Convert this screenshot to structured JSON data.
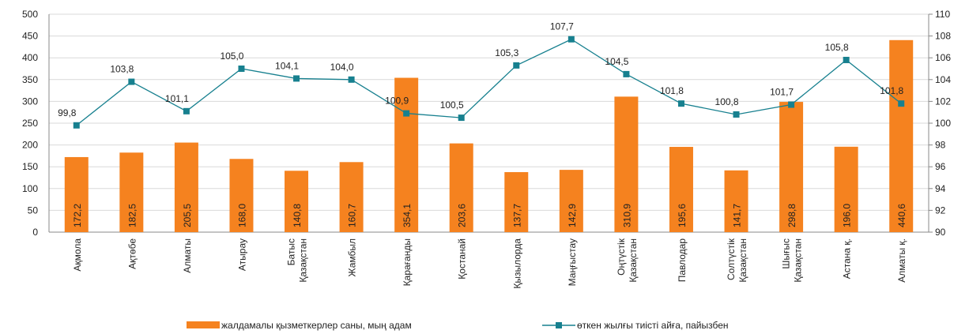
{
  "chart_data": {
    "type": "bar_line",
    "categories": [
      "Ақмола",
      "Ақтөбе",
      "Алматы",
      "Атырау",
      "Батыс\nҚазақстан",
      "Жамбыл",
      "Қарағанды",
      "Қостанай",
      "Қызылорда",
      "Маңғыстау",
      "Оңтүстік\nҚазақстан",
      "Павлодар",
      "Солтүстік\nҚазақстан",
      "Шығыс\nҚазақстан",
      "Астана қ.",
      "Алматы қ."
    ],
    "series": [
      {
        "name": "жалдамалы қызметкерлер саны, мың адам",
        "color": "#f5821f",
        "type": "bar",
        "values": [
          172.2,
          182.5,
          205.5,
          168.0,
          140.8,
          160.7,
          354.1,
          203.6,
          137.7,
          142.9,
          310.9,
          195.6,
          141.7,
          298.8,
          196.0,
          440.6
        ],
        "value_labels": [
          "172,2",
          "182,5",
          "205,5",
          "168,0",
          "140,8",
          "160,7",
          "354,1",
          "203,6",
          "137,7",
          "142,9",
          "310,9",
          "195,6",
          "141,7",
          "298,8",
          "196,0",
          "440,6"
        ]
      },
      {
        "name": "өткен жылғы тиісті айға, пайызбен",
        "color": "#17808f",
        "type": "line",
        "axis": "y2",
        "values": [
          99.8,
          103.8,
          101.1,
          105.0,
          104.1,
          104.0,
          100.9,
          100.5,
          105.3,
          107.7,
          104.5,
          101.8,
          100.8,
          101.7,
          105.8,
          101.8
        ],
        "value_labels": [
          "99,8",
          "103,8",
          "101,1",
          "105,0",
          "104,1",
          "104,0",
          "100,9",
          "100,5",
          "105,3",
          "107,7",
          "104,5",
          "101,8",
          "100,8",
          "101,7",
          "105,8",
          "101,8"
        ]
      }
    ],
    "ylim": [
      0,
      500
    ],
    "yticks": [
      0,
      50,
      100,
      150,
      200,
      250,
      300,
      350,
      400,
      450,
      500
    ],
    "y2lim": [
      90,
      110
    ],
    "y2ticks": [
      90,
      92,
      94,
      96,
      98,
      100,
      102,
      104,
      106,
      108,
      110
    ],
    "grid": true
  }
}
